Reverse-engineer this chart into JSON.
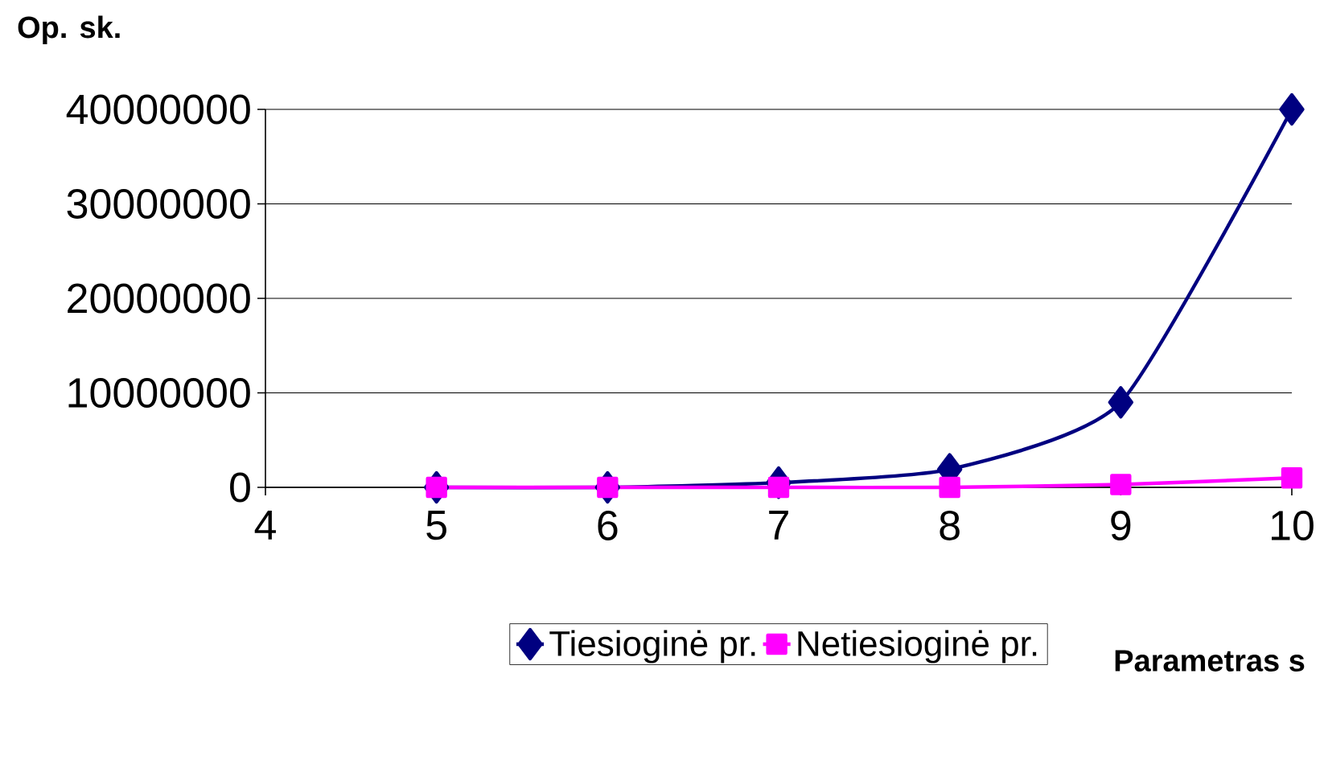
{
  "chart_data": {
    "type": "line",
    "ylabel": "Op. sk.",
    "xlabel": "Parametras s",
    "x": [
      5,
      6,
      7,
      8,
      9,
      10
    ],
    "series": [
      {
        "name": "Tiesioginė pr.",
        "color": "#000080",
        "marker": "diamond",
        "values": [
          0,
          0,
          500000,
          1900000,
          9000000,
          40000000
        ]
      },
      {
        "name": "Netiesioginė pr.",
        "color": "#ff00ff",
        "marker": "square",
        "values": [
          0,
          0,
          0,
          0,
          300000,
          1000000
        ]
      }
    ],
    "xlim": [
      4,
      10
    ],
    "xticks": [
      4,
      5,
      6,
      7,
      8,
      9,
      10
    ],
    "ylim": [
      0,
      40000000
    ],
    "yticks": [
      0,
      10000000,
      20000000,
      30000000,
      40000000
    ],
    "grid": "y",
    "legend": "bottom",
    "line_style": "solid"
  }
}
